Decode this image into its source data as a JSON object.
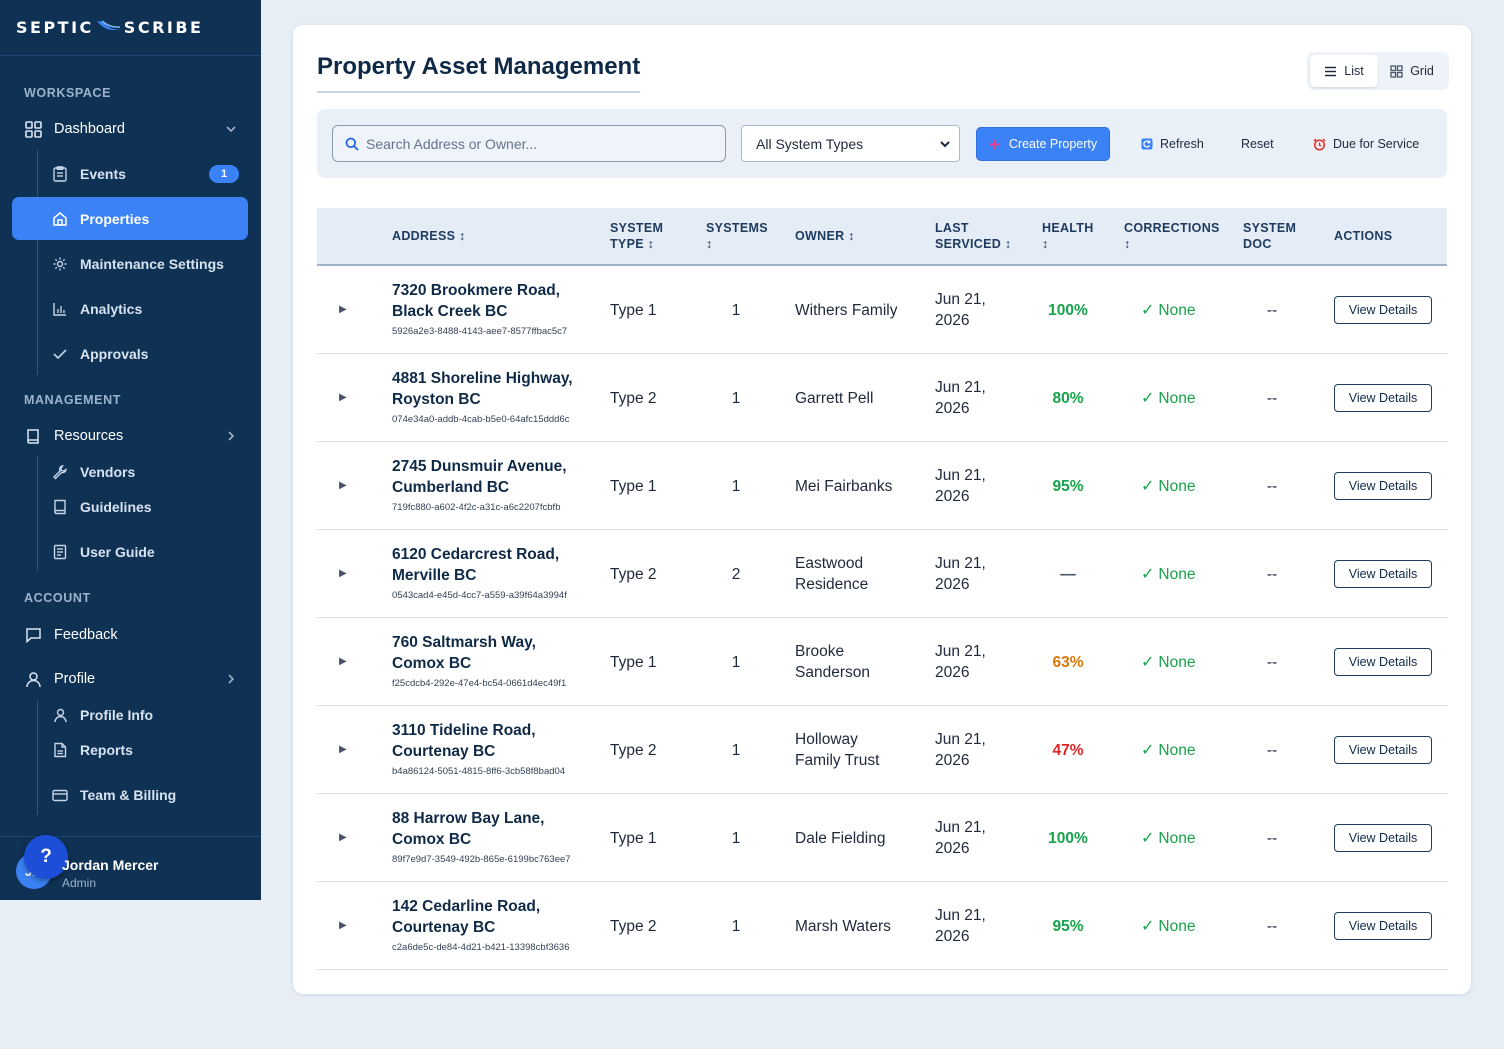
{
  "app": {
    "logo_left": "SEPTIC",
    "logo_right": "SCRIBE"
  },
  "sidebar": {
    "sections": {
      "workspace": "WORKSPACE",
      "management": "MANAGEMENT",
      "account": "ACCOUNT"
    },
    "dashboard": "Dashboard",
    "events": "Events",
    "events_badge": "1",
    "properties": "Properties",
    "maintenance_settings": "Maintenance Settings",
    "analytics": "Analytics",
    "approvals": "Approvals",
    "resources": "Resources",
    "vendors": "Vendors",
    "guidelines": "Guidelines",
    "user_guide": "User Guide",
    "feedback": "Feedback",
    "profile": "Profile",
    "profile_info": "Profile Info",
    "reports": "Reports",
    "team_billing": "Team & Billing",
    "user": {
      "initials": "JM",
      "name": "Jordan Mercer",
      "role": "Admin",
      "help": "?"
    }
  },
  "main": {
    "title": "Property Asset Management",
    "view_toggle": {
      "list": "List",
      "grid": "Grid",
      "selected": "List"
    },
    "toolbar": {
      "search_placeholder": "Search Address or Owner...",
      "system_type_selected": "All System Types",
      "create": "Create Property",
      "refresh": "Refresh",
      "reset": "Reset",
      "due": "Due for Service"
    },
    "columns": {
      "address": "ADDRESS ↕",
      "system_type_1": "SYSTEM",
      "system_type_2": "TYPE ↕",
      "systems_1": "SYSTEMS",
      "systems_2": "↕",
      "owner": "OWNER ↕",
      "last_serviced_1": "LAST",
      "last_serviced_2": "SERVICED ↕",
      "health_1": "HEALTH",
      "health_2": "↕",
      "corrections_1": "CORRECTIONS",
      "corrections_2": "↕",
      "system_doc_1": "SYSTEM",
      "system_doc_2": "DOC",
      "actions": "ACTIONS"
    },
    "rows": [
      {
        "addr1": "7320 Brookmere Road,",
        "addr2": "Black Creek BC",
        "id": "5926a2e3-8488-4143-aee7-8577ffbac5c7",
        "type": "Type 1",
        "systems": "1",
        "owner1": "Withers Family",
        "owner2": "",
        "date1": "Jun 21,",
        "date2": "2026",
        "health": "100%",
        "health_color": "#16a34a",
        "corrections": "None",
        "doc": "--",
        "action": "View Details"
      },
      {
        "addr1": "4881 Shoreline Highway,",
        "addr2": "Royston BC",
        "id": "074e34a0-addb-4cab-b5e0-64afc15ddd6c",
        "type": "Type 2",
        "systems": "1",
        "owner1": "Garrett Pell",
        "owner2": "",
        "date1": "Jun 21,",
        "date2": "2026",
        "health": "80%",
        "health_color": "#16a34a",
        "corrections": "None",
        "doc": "--",
        "action": "View Details"
      },
      {
        "addr1": "2745 Dunsmuir Avenue,",
        "addr2": "Cumberland BC",
        "id": "719fc880-a602-4f2c-a31c-a6c2207fcbfb",
        "type": "Type 1",
        "systems": "1",
        "owner1": "Mei Fairbanks",
        "owner2": "",
        "date1": "Jun 21,",
        "date2": "2026",
        "health": "95%",
        "health_color": "#16a34a",
        "corrections": "None",
        "doc": "--",
        "action": "View Details"
      },
      {
        "addr1": "6120 Cedarcrest Road,",
        "addr2": "Merville BC",
        "id": "0543cad4-e45d-4cc7-a559-a39f64a3994f",
        "type": "Type 2",
        "systems": "2",
        "owner1": "Eastwood",
        "owner2": "Residence",
        "date1": "Jun 21,",
        "date2": "2026",
        "health": "—",
        "health_color": "#475569",
        "corrections": "None",
        "doc": "--",
        "action": "View Details"
      },
      {
        "addr1": "760 Saltmarsh Way,",
        "addr2": "Comox BC",
        "id": "f25cdcb4-292e-47e4-bc54-0661d4ec49f1",
        "type": "Type 1",
        "systems": "1",
        "owner1": "Brooke",
        "owner2": "Sanderson",
        "date1": "Jun 21,",
        "date2": "2026",
        "health": "63%",
        "health_color": "#d97706",
        "corrections": "None",
        "doc": "--",
        "action": "View Details"
      },
      {
        "addr1": "3110 Tideline Road,",
        "addr2": "Courtenay BC",
        "id": "b4a86124-5051-4815-8ff6-3cb58f8bad04",
        "type": "Type 2",
        "systems": "1",
        "owner1": "Holloway",
        "owner2": "Family Trust",
        "date1": "Jun 21,",
        "date2": "2026",
        "health": "47%",
        "health_color": "#dc2626",
        "corrections": "None",
        "doc": "--",
        "action": "View Details"
      },
      {
        "addr1": "88 Harrow Bay Lane,",
        "addr2": "Comox BC",
        "id": "89f7e9d7-3549-492b-865e-6199bc763ee7",
        "type": "Type 1",
        "systems": "1",
        "owner1": "Dale Fielding",
        "owner2": "",
        "date1": "Jun 21,",
        "date2": "2026",
        "health": "100%",
        "health_color": "#16a34a",
        "corrections": "None",
        "doc": "--",
        "action": "View Details"
      },
      {
        "addr1": "142 Cedarline Road,",
        "addr2": "Courtenay BC",
        "id": "c2a6de5c-de84-4d21-b421-13398cbf3636",
        "type": "Type 2",
        "systems": "1",
        "owner1": "Marsh Waters",
        "owner2": "",
        "date1": "Jun 21,",
        "date2": "2026",
        "health": "95%",
        "health_color": "#16a34a",
        "corrections": "None",
        "doc": "--",
        "action": "View Details"
      }
    ]
  }
}
